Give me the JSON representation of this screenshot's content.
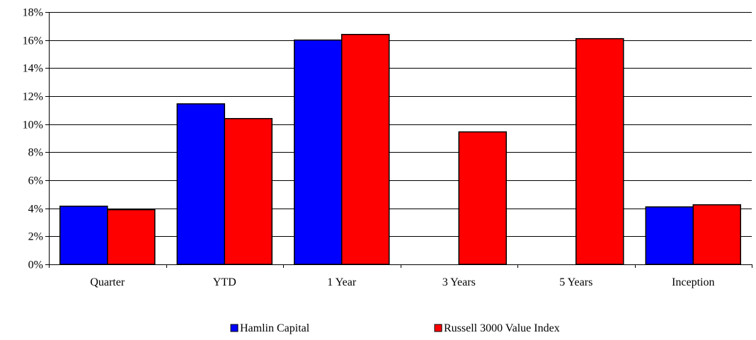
{
  "chart_data": {
    "type": "bar",
    "title": "",
    "xlabel": "",
    "ylabel": "",
    "categories": [
      "Quarter",
      "YTD",
      "1 Year",
      "3 Years",
      "5 Years",
      "Inception"
    ],
    "series": [
      {
        "name": "Hamlin Capital",
        "color": "#0000ff",
        "values": [
          4.15,
          11.45,
          16.0,
          null,
          null,
          4.1
        ]
      },
      {
        "name": "Russell 3000 Value Index",
        "color": "#ff0000",
        "values": [
          3.9,
          10.4,
          16.4,
          9.45,
          16.1,
          4.25
        ]
      }
    ],
    "ylim": [
      0,
      18
    ],
    "yticks": [
      0,
      2,
      4,
      6,
      8,
      10,
      12,
      14,
      16,
      18
    ],
    "ytick_labels": [
      "0%",
      "2%",
      "4%",
      "6%",
      "8%",
      "10%",
      "12%",
      "14%",
      "16%",
      "18%"
    ],
    "grid": true,
    "legend_position": "bottom"
  }
}
